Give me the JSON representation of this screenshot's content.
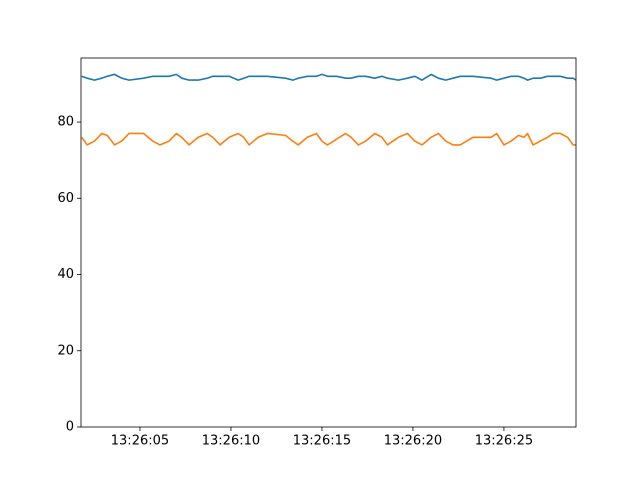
{
  "chart_data": {
    "type": "line",
    "x": [
      1.8,
      2.1,
      2.5,
      2.9,
      3.2,
      3.6,
      4.0,
      4.4,
      5.2,
      5.7,
      6.1,
      6.6,
      7.0,
      7.3,
      7.7,
      8.2,
      8.7,
      9.0,
      9.4,
      9.9,
      10.4,
      10.7,
      11.0,
      11.5,
      12.0,
      13.0,
      13.4,
      13.7,
      14.2,
      14.7,
      15.0,
      15.3,
      15.8,
      16.3,
      16.6,
      17.0,
      17.4,
      17.9,
      18.3,
      18.6,
      19.2,
      19.7,
      20.1,
      20.5,
      21.0,
      21.4,
      21.8,
      22.2,
      22.6,
      23.3,
      24.3,
      24.6,
      25.0,
      25.4,
      25.8,
      26.1,
      26.3,
      26.6,
      27.0,
      27.4,
      27.7,
      28.1,
      28.5,
      28.8,
      28.96
    ],
    "series": [
      {
        "color": "#1f77b4",
        "values": [
          92,
          91.5,
          91,
          91.5,
          92,
          92.5,
          91.5,
          91,
          91.5,
          92,
          92,
          92,
          92.5,
          91.5,
          91,
          91,
          91.5,
          92,
          92,
          92,
          91,
          91.5,
          92,
          92,
          92,
          91.5,
          91,
          91.5,
          92,
          92,
          92.5,
          92,
          92,
          91.5,
          91.5,
          92,
          92,
          91.5,
          92,
          91.5,
          91,
          91.5,
          92,
          91,
          92.5,
          91.5,
          91,
          91.5,
          92,
          92,
          91.5,
          91,
          91.5,
          92,
          92,
          91.5,
          91,
          91.5,
          91.5,
          92,
          92,
          92,
          91.5,
          91.5,
          91
        ]
      },
      {
        "color": "#ff7f0e",
        "values": [
          76,
          74,
          75,
          77,
          76.5,
          74,
          75,
          77,
          77,
          75,
          74,
          75,
          77,
          76,
          74,
          76,
          77,
          76,
          74,
          76,
          77,
          76,
          74,
          76,
          77,
          76.5,
          75,
          74,
          76,
          77,
          75,
          74,
          75.5,
          77,
          76,
          74,
          75,
          77,
          76,
          74,
          76,
          77,
          75,
          74,
          76,
          77,
          75,
          74,
          74,
          76,
          76,
          77,
          74,
          75,
          76.5,
          76,
          77,
          74,
          75,
          76,
          77,
          77,
          76,
          74,
          74
        ]
      }
    ],
    "xlim": [
      1.76,
      28.96
    ],
    "xticks": [
      {
        "value": 5,
        "label": "13:26:05"
      },
      {
        "value": 10,
        "label": "13:26:10"
      },
      {
        "value": 15,
        "label": "13:26:15"
      },
      {
        "value": 20,
        "label": "13:26:20"
      },
      {
        "value": 25,
        "label": "13:26:25"
      }
    ],
    "ylim": [
      0,
      96.8
    ],
    "yticks": [
      0,
      20,
      40,
      60,
      80
    ]
  }
}
